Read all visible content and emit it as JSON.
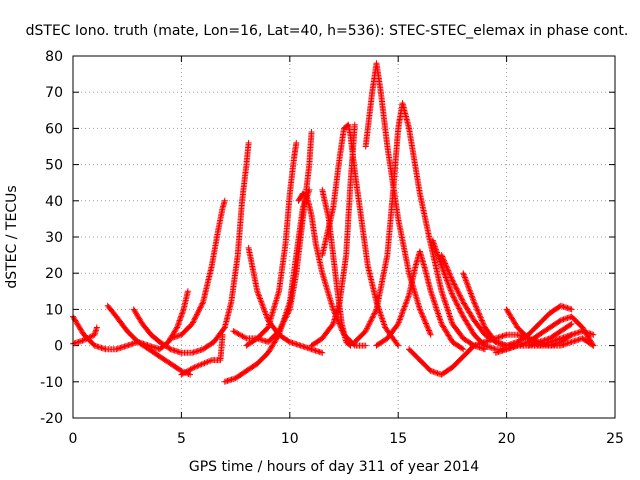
{
  "chart_data": {
    "type": "scatter",
    "title": "dSTEC Iono. truth (mate, Lon=16, Lat=40, h=536): STEC-STEC_elemax in phase cont.",
    "xlabel": "GPS time / hours of day 311 of year 2014",
    "ylabel": "dSTEC  / TECUs",
    "xlim": [
      0,
      25
    ],
    "ylim": [
      -20,
      80
    ],
    "xticks": [
      0,
      5,
      10,
      15,
      20,
      25
    ],
    "yticks": [
      -20,
      -10,
      0,
      10,
      20,
      30,
      40,
      50,
      60,
      70,
      80
    ],
    "grid": true,
    "marker": "plus",
    "color": "#ff0000",
    "series": [
      {
        "x": [
          0.0,
          0.5,
          1.0,
          1.5,
          2.0,
          2.5,
          3.0,
          3.5,
          4.0,
          4.4,
          4.8,
          5.1,
          5.3
        ],
        "y": [
          8,
          3,
          0,
          -1,
          -1,
          0,
          1,
          0,
          -1,
          1,
          5,
          10,
          15
        ]
      },
      {
        "x": [
          0.0,
          0.5,
          1.0,
          1.1
        ],
        "y": [
          0.5,
          1.5,
          3,
          5
        ]
      },
      {
        "x": [
          1.6,
          2.0,
          2.5,
          3.0,
          3.5,
          4.0,
          4.5,
          5.0,
          5.4
        ],
        "y": [
          11,
          8,
          4,
          1,
          -1,
          -3,
          -5,
          -7,
          -8
        ]
      },
      {
        "x": [
          2.8,
          3.2,
          3.6,
          4.0,
          4.5,
          5.0,
          5.5,
          6.0,
          6.5,
          7.0,
          7.3,
          7.6,
          7.8,
          8.0,
          8.1
        ],
        "y": [
          10,
          6,
          3,
          1,
          -1,
          -2,
          -2,
          -1,
          1,
          5,
          12,
          25,
          40,
          50,
          56
        ]
      },
      {
        "x": [
          5.0,
          5.3,
          5.6,
          6.0,
          6.4,
          6.8,
          6.9
        ],
        "y": [
          -8,
          -7,
          -6,
          -5,
          -4,
          -4,
          3
        ]
      },
      {
        "x": [
          4.5,
          5.0,
          5.5,
          6.0,
          6.4,
          6.7,
          6.9,
          7.0
        ],
        "y": [
          2,
          3,
          6,
          12,
          22,
          32,
          38,
          40
        ]
      },
      {
        "x": [
          7.0,
          7.5,
          8.0,
          8.5,
          9.0,
          9.5,
          10.0,
          10.3,
          10.6,
          10.9
        ],
        "y": [
          -10,
          -9,
          -7,
          -5,
          -2,
          3,
          12,
          25,
          38,
          43
        ]
      },
      {
        "x": [
          7.4,
          8.0,
          8.5,
          9.0,
          9.5,
          9.8,
          10.0,
          10.2,
          10.3
        ],
        "y": [
          4,
          2,
          2,
          5,
          15,
          28,
          42,
          52,
          56
        ]
      },
      {
        "x": [
          8.1,
          8.5,
          9.0,
          9.5,
          10.0,
          10.5,
          11.0,
          11.5
        ],
        "y": [
          27,
          15,
          7,
          3,
          1,
          0,
          -1,
          -2
        ]
      },
      {
        "x": [
          10.4,
          10.6,
          10.8,
          11.0,
          11.2,
          11.5,
          12.0,
          12.5,
          13.0,
          13.5
        ],
        "y": [
          40,
          42,
          41,
          36,
          28,
          20,
          10,
          3,
          0,
          0
        ]
      },
      {
        "x": [
          8.0,
          8.5,
          9.0,
          9.5,
          10.0,
          10.3,
          10.6,
          10.9,
          11.0
        ],
        "y": [
          0,
          2,
          1,
          4,
          10,
          20,
          35,
          50,
          59
        ]
      },
      {
        "x": [
          11.5,
          12.0,
          12.3,
          12.5,
          12.7,
          12.8,
          13.0,
          13.3,
          13.6,
          14.0,
          14.4,
          15.0
        ],
        "y": [
          25,
          38,
          52,
          60,
          61,
          58,
          48,
          35,
          22,
          12,
          5,
          0
        ]
      },
      {
        "x": [
          11.5,
          11.8,
          12.0,
          12.2,
          12.4,
          12.6,
          12.8
        ],
        "y": [
          43,
          35,
          25,
          15,
          6,
          1,
          0
        ]
      },
      {
        "x": [
          11.0,
          11.5,
          12.0,
          12.3,
          12.6,
          12.8,
          13.0
        ],
        "y": [
          0,
          2,
          6,
          12,
          25,
          45,
          61
        ]
      },
      {
        "x": [
          13.5,
          13.8,
          14.0,
          14.2,
          14.5,
          15.0,
          15.5,
          16.0,
          16.5
        ],
        "y": [
          55,
          70,
          78,
          70,
          55,
          35,
          20,
          10,
          3
        ]
      },
      {
        "x": [
          13.0,
          13.5,
          14.0,
          14.5,
          14.8,
          15.0,
          15.2,
          15.5
        ],
        "y": [
          1,
          4,
          10,
          25,
          45,
          60,
          67,
          60
        ]
      },
      {
        "x": [
          15.5,
          16.0,
          16.5,
          17.0,
          17.5,
          18.0,
          18.5,
          19.0
        ],
        "y": [
          60,
          42,
          28,
          15,
          6,
          2,
          0,
          -1
        ]
      },
      {
        "x": [
          14.0,
          14.5,
          15.0,
          15.5,
          15.8,
          16.0,
          16.2,
          16.5,
          17.0,
          17.5,
          18.0
        ],
        "y": [
          0,
          2,
          6,
          14,
          22,
          26,
          22,
          15,
          6,
          1,
          -1
        ]
      },
      {
        "x": [
          16.6,
          17.0,
          17.5,
          18.0,
          18.5,
          19.0,
          19.5,
          20.0,
          20.5
        ],
        "y": [
          29,
          22,
          14,
          8,
          3,
          0,
          -1,
          -1,
          0
        ]
      },
      {
        "x": [
          17.0,
          17.5,
          18.0,
          18.5,
          19.0,
          19.5,
          20.0,
          20.5,
          21.0,
          21.5,
          22.0,
          22.5,
          23.0
        ],
        "y": [
          25,
          18,
          12,
          7,
          3,
          1,
          0,
          0,
          0,
          1,
          2,
          4,
          6
        ]
      },
      {
        "x": [
          15.5,
          16.0,
          16.5,
          17.0,
          17.5,
          18.0,
          18.5,
          19.0,
          19.5,
          20.0,
          20.5,
          21.0,
          21.5,
          22.0,
          22.5,
          23.0,
          23.5,
          24.0
        ],
        "y": [
          -1,
          -4,
          -7,
          -8,
          -6,
          -3,
          0,
          1,
          2,
          3,
          3,
          2,
          1,
          0,
          0,
          1,
          2,
          0
        ]
      },
      {
        "x": [
          18.0,
          18.5,
          19.0,
          19.5,
          20.0,
          20.5,
          21.0,
          21.5,
          22.0,
          22.5,
          23.0
        ],
        "y": [
          20,
          12,
          5,
          1,
          0,
          1,
          3,
          6,
          9,
          11,
          10
        ]
      },
      {
        "x": [
          19.5,
          20.0,
          20.5,
          21.0,
          21.5,
          22.0,
          22.5,
          23.0,
          23.5,
          24.0
        ],
        "y": [
          -2,
          -1,
          0,
          1,
          3,
          5,
          7,
          8,
          5,
          0
        ]
      },
      {
        "x": [
          20.0,
          20.5,
          21.0,
          21.5,
          22.0,
          22.5,
          23.0
        ],
        "y": [
          10,
          5,
          2,
          0,
          0,
          1,
          3
        ]
      },
      {
        "x": [
          21.0,
          21.5,
          22.0,
          22.5,
          23.0,
          23.5,
          24.0
        ],
        "y": [
          0,
          0,
          1,
          2,
          3,
          4,
          3
        ]
      }
    ]
  }
}
